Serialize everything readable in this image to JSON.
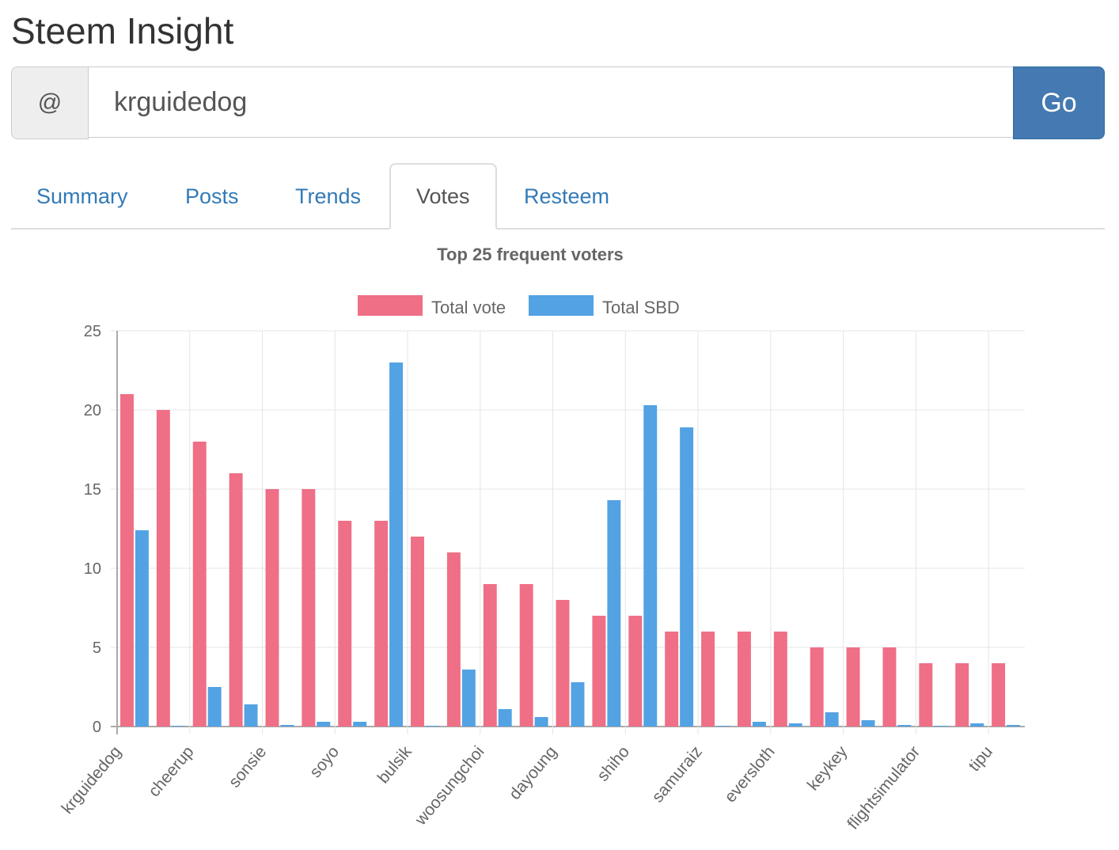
{
  "app": {
    "title": "Steem Insight"
  },
  "search": {
    "prefix": "@",
    "value": "krguidedog",
    "go_label": "Go"
  },
  "tabs": [
    {
      "label": "Summary"
    },
    {
      "label": "Posts"
    },
    {
      "label": "Trends"
    },
    {
      "label": "Votes",
      "active": true
    },
    {
      "label": "Resteem"
    }
  ],
  "chart_data": {
    "type": "bar",
    "title": "Top 25 frequent voters",
    "legend": [
      "Total vote",
      "Total SBD"
    ],
    "legend_position": "top",
    "categories": [
      "krguidedog",
      "",
      "cheerup",
      "",
      "sonsie",
      "",
      "soyo",
      "",
      "bulsik",
      "",
      "woosungchoi",
      "",
      "dayoung",
      "",
      "shiho",
      "",
      "samuraiz",
      "",
      "eversloth",
      "",
      "keykey",
      "",
      "flightsimulator",
      "",
      "tipu"
    ],
    "series": [
      {
        "name": "Total vote",
        "color": "#ef6f86",
        "values": [
          21,
          20,
          18,
          16,
          15,
          15,
          13,
          13,
          12,
          11,
          9,
          9,
          8,
          7,
          7,
          6,
          6,
          6,
          6,
          5,
          5,
          5,
          4,
          4,
          4
        ]
      },
      {
        "name": "Total SBD",
        "color": "#53a2e3",
        "values": [
          12.4,
          0,
          2.5,
          1.4,
          0.1,
          0.3,
          0.3,
          23,
          0.02,
          3.6,
          1.1,
          0.6,
          2.8,
          14.3,
          20.3,
          18.9,
          0.02,
          0.3,
          0.2,
          0.9,
          0.4,
          0.1,
          0.02,
          0.2,
          0.1
        ]
      }
    ],
    "ylim": [
      0,
      25
    ],
    "yticks": [
      0,
      5,
      10,
      15,
      20,
      25
    ],
    "grid": true
  }
}
